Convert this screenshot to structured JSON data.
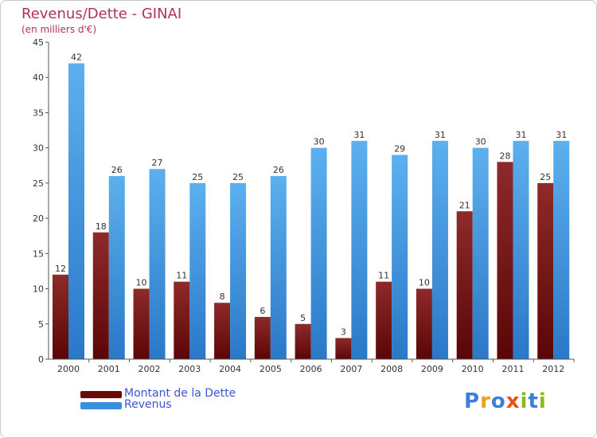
{
  "chart_data": {
    "type": "bar",
    "title": "Revenus/Dette - GINAI",
    "subtitle": "(en milliers d'€)",
    "categories": [
      "2000",
      "2001",
      "2002",
      "2003",
      "2004",
      "2005",
      "2006",
      "2007",
      "2008",
      "2009",
      "2010",
      "2011",
      "2012"
    ],
    "series": [
      {
        "name": "Montant de la Dette",
        "color": "#7a1010",
        "values": [
          12,
          18,
          10,
          11,
          8,
          6,
          5,
          3,
          11,
          10,
          21,
          28,
          25
        ]
      },
      {
        "name": "Revenus",
        "color": "#4aa3e8",
        "values": [
          42,
          26,
          27,
          25,
          25,
          26,
          30,
          31,
          29,
          31,
          30,
          31,
          31
        ]
      }
    ],
    "ylim": [
      0,
      45
    ],
    "yticks": [
      0,
      5,
      10,
      15,
      20,
      25,
      30,
      35,
      40,
      45
    ],
    "grid": false,
    "legend_position": "bottom-left",
    "data_labels": true
  },
  "logo": {
    "text": "Proxiti",
    "letter_colors": [
      "#3a7fd8",
      "#e8a020",
      "#3a7fd8",
      "#e8501a",
      "#8ab820",
      "#3a7fd8",
      "#8ab820"
    ]
  }
}
